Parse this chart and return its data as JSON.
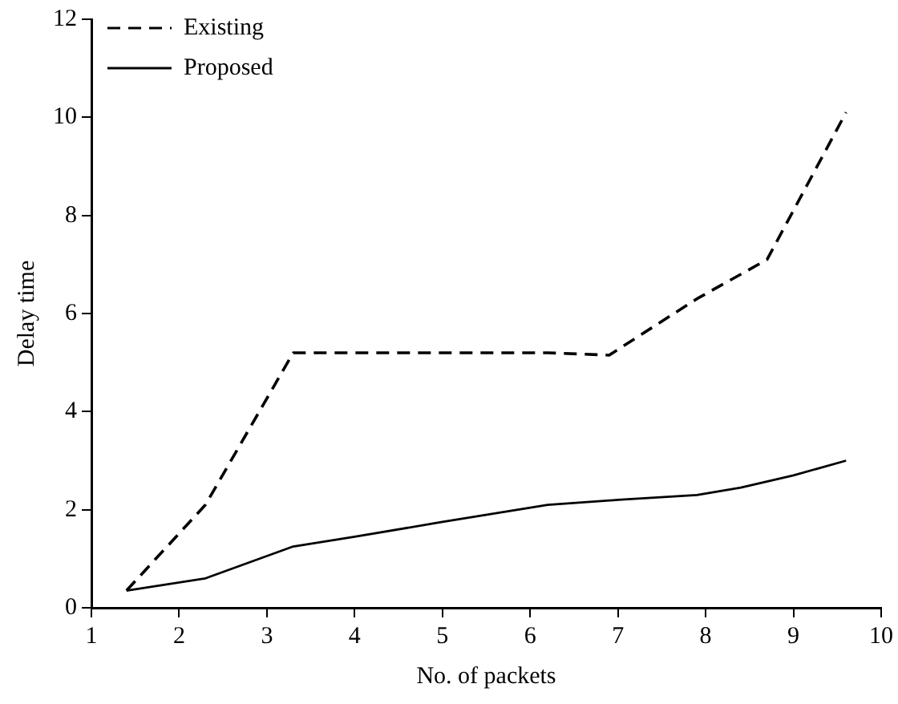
{
  "chart_data": {
    "type": "line",
    "xlabel": "No. of packets",
    "ylabel": "Delay time",
    "xlim": [
      1,
      10
    ],
    "xticks": [
      1,
      2,
      3,
      4,
      5,
      6,
      7,
      8,
      9,
      10
    ],
    "ylim": [
      0,
      12
    ],
    "yticks": [
      0,
      2,
      4,
      6,
      8,
      10,
      12
    ],
    "grid": false,
    "legend": "top left",
    "marker": "none",
    "series": [
      {
        "name": "Existing",
        "color": "#000000",
        "line_style": "dashed",
        "x": [
          1.4,
          2.3,
          3.3,
          6.2,
          6.9,
          7.9,
          8.7,
          9.6
        ],
        "values": [
          0.35,
          2.1,
          5.2,
          5.2,
          5.15,
          6.3,
          7.1,
          10.1
        ]
      },
      {
        "name": "Proposed",
        "color": "#000000",
        "line_style": "solid",
        "x": [
          1.4,
          2.3,
          3.3,
          4,
          5,
          6.2,
          7,
          7.9,
          8.4,
          9,
          9.6
        ],
        "values": [
          0.35,
          0.6,
          1.25,
          1.45,
          1.75,
          2.1,
          2.2,
          2.3,
          2.45,
          2.7,
          3.0
        ]
      }
    ]
  }
}
